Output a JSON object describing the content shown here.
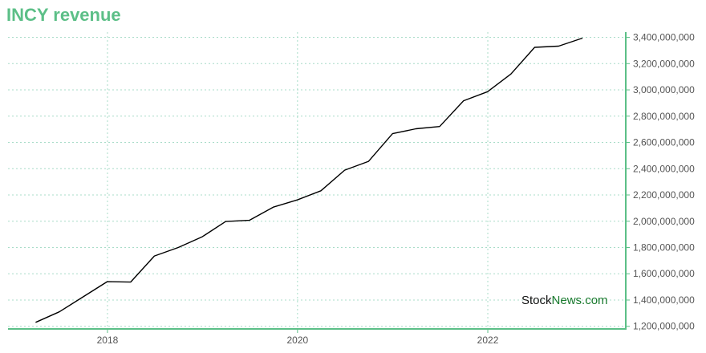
{
  "title": "INCY revenue",
  "watermark": {
    "part1": "Stock",
    "part2": "News",
    "part3": ".com"
  },
  "colors": {
    "accent": "#5cbf87",
    "line": "#000000",
    "grid": "#a8dcc8",
    "watermark_dark": "#111111",
    "watermark_green": "#1a7a2e"
  },
  "chart_data": {
    "type": "line",
    "title": "INCY revenue",
    "xlabel": "",
    "ylabel": "",
    "x_ticks": [
      "2018",
      "2020",
      "2022"
    ],
    "y_ticks": [
      "1,200,000,000",
      "1,400,000,000",
      "1,600,000,000",
      "1,800,000,000",
      "2,000,000,000",
      "2,200,000,000",
      "2,400,000,000",
      "2,600,000,000",
      "2,800,000,000",
      "3,000,000,000",
      "3,200,000,000",
      "3,400,000,000"
    ],
    "ylim": [
      1180000000,
      3440000000
    ],
    "xlim": [
      "2016-12-15",
      "2023-06-15"
    ],
    "y_axis_position": "right",
    "grid": true,
    "series": [
      {
        "x": [
          "2017-03-31",
          "2017-06-30",
          "2017-09-30",
          "2017-12-31",
          "2018-03-31",
          "2018-06-30",
          "2018-09-30",
          "2018-12-31",
          "2019-03-31",
          "2019-06-30",
          "2019-09-30",
          "2019-12-31",
          "2020-03-31",
          "2020-06-30",
          "2020-09-30",
          "2020-12-31",
          "2021-03-31",
          "2021-06-30",
          "2021-09-30",
          "2021-12-31",
          "2022-03-31",
          "2022-06-30",
          "2022-09-30",
          "2022-12-31"
        ],
        "values": [
          1230000000,
          1310000000,
          1425000000,
          1540000000,
          1537000000,
          1735000000,
          1800000000,
          1882000000,
          1998000000,
          2007000000,
          2107000000,
          2162000000,
          2232000000,
          2389000000,
          2456000000,
          2667000000,
          2704000000,
          2721000000,
          2917000000,
          2986000000,
          3121000000,
          3324000000,
          3333000000,
          3394000000
        ]
      }
    ]
  }
}
